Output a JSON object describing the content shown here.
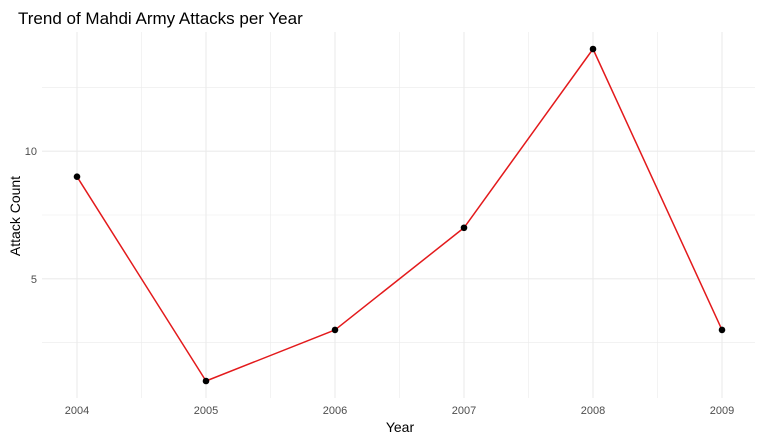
{
  "chart_data": {
    "type": "line",
    "title": "Trend of Mahdi Army Attacks per Year",
    "xlabel": "Year",
    "ylabel": "Attack Count",
    "x": [
      2004,
      2005,
      2006,
      2007,
      2008,
      2009
    ],
    "y": [
      9,
      1,
      3,
      7,
      14,
      3
    ],
    "xlim": [
      2004,
      2009
    ],
    "ylim": [
      1,
      14
    ],
    "x_ticks": [
      "2004",
      "2005",
      "2006",
      "2007",
      "2008",
      "2009"
    ],
    "y_ticks": [
      5,
      10
    ],
    "y_tick_labels": [
      "5",
      "10"
    ],
    "grid": true,
    "line_color": "#e31a1c",
    "point_color": "#000000",
    "grid_color": "#ebebeb",
    "legend": false
  }
}
